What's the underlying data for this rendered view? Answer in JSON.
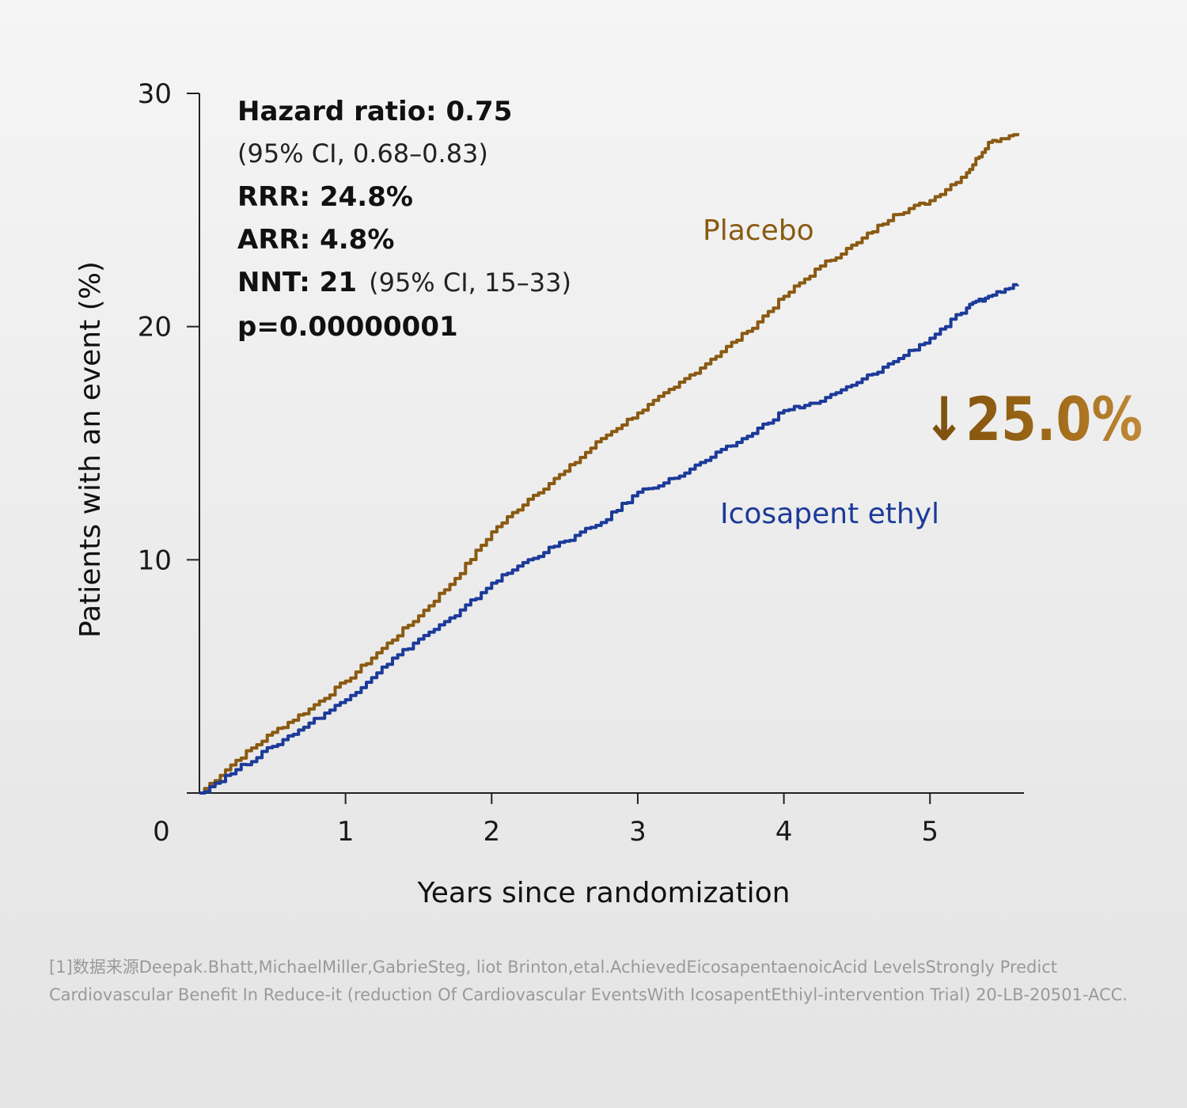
{
  "chart_data": {
    "type": "line",
    "xlabel": "Years since randomization",
    "ylabel": "Patients with an event (%)",
    "xlim": [
      0,
      5.6
    ],
    "ylim": [
      0,
      30
    ],
    "x_ticks": [
      1,
      2,
      3,
      4,
      5
    ],
    "y_ticks": [
      10,
      20,
      30
    ],
    "origin_label": "0",
    "series": [
      {
        "name": "Placebo",
        "color": "#8a5a12",
        "x": [
          0,
          0.25,
          0.5,
          0.75,
          1.0,
          1.25,
          1.5,
          1.75,
          2.0,
          2.25,
          2.5,
          2.75,
          3.0,
          3.25,
          3.5,
          3.75,
          4.0,
          4.25,
          4.5,
          4.75,
          5.0,
          5.25,
          5.4,
          5.6
        ],
        "values": [
          0,
          1.4,
          2.6,
          3.6,
          4.8,
          6.2,
          7.6,
          9.2,
          11.2,
          12.6,
          13.8,
          15.2,
          16.3,
          17.4,
          18.6,
          19.8,
          21.3,
          22.6,
          23.6,
          24.8,
          25.4,
          26.6,
          27.9,
          28.3
        ]
      },
      {
        "name": "Icosapent ethyl",
        "color": "#1c3a99",
        "x": [
          0,
          0.25,
          0.5,
          0.75,
          1.0,
          1.25,
          1.5,
          1.75,
          2.0,
          2.25,
          2.5,
          2.75,
          3.0,
          3.25,
          3.5,
          3.75,
          4.0,
          4.25,
          4.5,
          4.75,
          5.0,
          5.25,
          5.4,
          5.6
        ],
        "values": [
          0,
          1.0,
          2.0,
          3.0,
          4.0,
          5.4,
          6.6,
          7.6,
          9.0,
          10.0,
          10.8,
          11.6,
          12.9,
          13.5,
          14.4,
          15.3,
          16.4,
          16.8,
          17.6,
          18.5,
          19.5,
          20.8,
          21.3,
          21.8
        ]
      }
    ],
    "annotations": {
      "hazard_ratio": "Hazard ratio: 0.75",
      "ci": "(95% CI, 0.68–0.83)",
      "rrr": "RRR: 24.8%",
      "arr": "ARR: 4.8%",
      "nnt": "NNT: 21",
      "nnt_ci": "(95% CI, 15–33)",
      "p_value": "p=0.00000001",
      "reduction": "↓25.0%"
    }
  },
  "footnote": "[1]数据来源Deepak.Bhatt,MichaelMiller,GabrieSteg, liot Brinton,etal.AchievedEicosapentaenoicAcid LevelsStrongly Predict Cardiovascular Benefit In Reduce-it (reduction Of Cardiovascular EventsWith IcosapentEthiyl-intervention Trial) 20-LB-20501-ACC.",
  "colors": {
    "placebo": "#8a5a12",
    "icosapent": "#1c3a99",
    "reduction": "#9a6410",
    "axis": "#222222"
  }
}
